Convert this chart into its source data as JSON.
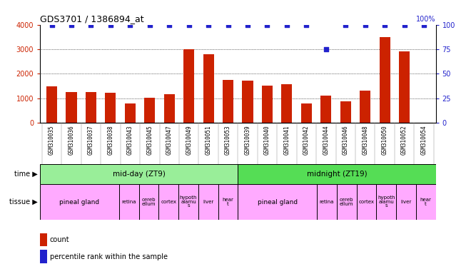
{
  "title": "GDS3701 / 1386894_at",
  "samples": [
    "GSM310035",
    "GSM310036",
    "GSM310037",
    "GSM310038",
    "GSM310043",
    "GSM310045",
    "GSM310047",
    "GSM310049",
    "GSM310051",
    "GSM310053",
    "GSM310039",
    "GSM310040",
    "GSM310041",
    "GSM310042",
    "GSM310044",
    "GSM310046",
    "GSM310048",
    "GSM310050",
    "GSM310052",
    "GSM310054"
  ],
  "counts": [
    1480,
    1240,
    1260,
    1230,
    780,
    1020,
    1150,
    3000,
    2780,
    1750,
    1730,
    1520,
    1560,
    800,
    1100,
    880,
    1300,
    3480,
    2900,
    0
  ],
  "percentile": [
    100,
    100,
    100,
    100,
    100,
    100,
    100,
    100,
    100,
    100,
    100,
    100,
    100,
    100,
    75,
    100,
    100,
    100,
    100,
    100
  ],
  "bar_color": "#cc2200",
  "dot_color": "#2222cc",
  "ylim_left": [
    0,
    4000
  ],
  "ylim_right": [
    0,
    100
  ],
  "yticks_left": [
    0,
    1000,
    2000,
    3000,
    4000
  ],
  "yticks_right": [
    0,
    25,
    50,
    75,
    100
  ],
  "grid_dotted_vals": [
    1000,
    2000,
    3000
  ],
  "time_groups": [
    {
      "label": "mid-day (ZT9)",
      "start": 0,
      "end": 10,
      "color": "#99ee99"
    },
    {
      "label": "midnight (ZT19)",
      "start": 10,
      "end": 20,
      "color": "#55dd55"
    }
  ],
  "tissue_groups": [
    {
      "label": "pineal gland",
      "start": 0,
      "end": 4,
      "color": "#ffaaff"
    },
    {
      "label": "retina",
      "start": 4,
      "end": 5,
      "color": "#ffaaff"
    },
    {
      "label": "cereb\nellum",
      "start": 5,
      "end": 6,
      "color": "#ffaaff"
    },
    {
      "label": "cortex",
      "start": 6,
      "end": 7,
      "color": "#ffaaff"
    },
    {
      "label": "hypoth\nalamu\ns",
      "start": 7,
      "end": 8,
      "color": "#ffaaff"
    },
    {
      "label": "liver",
      "start": 8,
      "end": 9,
      "color": "#ffaaff"
    },
    {
      "label": "hear\nt",
      "start": 9,
      "end": 10,
      "color": "#ffaaff"
    },
    {
      "label": "pineal gland",
      "start": 10,
      "end": 14,
      "color": "#ffaaff"
    },
    {
      "label": "retina",
      "start": 14,
      "end": 15,
      "color": "#ffaaff"
    },
    {
      "label": "cereb\nellum",
      "start": 15,
      "end": 16,
      "color": "#ffaaff"
    },
    {
      "label": "cortex",
      "start": 16,
      "end": 17,
      "color": "#ffaaff"
    },
    {
      "label": "hypoth\nalamu\ns",
      "start": 17,
      "end": 18,
      "color": "#ffaaff"
    },
    {
      "label": "liver",
      "start": 18,
      "end": 19,
      "color": "#ffaaff"
    },
    {
      "label": "hear\nt",
      "start": 19,
      "end": 20,
      "color": "#ffaaff"
    }
  ],
  "legend_items": [
    {
      "label": "count",
      "color": "#cc2200"
    },
    {
      "label": "percentile rank within the sample",
      "color": "#2222cc"
    }
  ],
  "xticklabel_bg": "#cccccc"
}
